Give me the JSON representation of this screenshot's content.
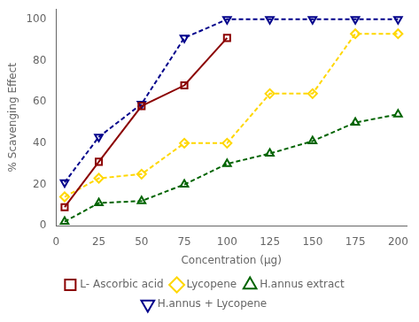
{
  "chart_data": {
    "type": "line",
    "xlabel": "Concentration (μg)",
    "ylabel": "% Scavenging Effect",
    "xlim": [
      0,
      205
    ],
    "ylim": [
      0,
      105
    ],
    "xticks": [
      0,
      25,
      50,
      75,
      100,
      125,
      150,
      175,
      200
    ],
    "yticks": [
      0,
      20,
      40,
      60,
      80,
      100
    ],
    "grid": false,
    "legend": "bottom",
    "series": [
      {
        "name": "L- Ascorbic acid",
        "x": [
          5,
          25,
          50,
          75,
          100
        ],
        "values": [
          9,
          31,
          58,
          68,
          91
        ],
        "color": "#8B0000",
        "marker": "square",
        "line_style": "solid"
      },
      {
        "name": "Lycopene",
        "x": [
          5,
          25,
          50,
          75,
          100,
          125,
          150,
          175,
          200
        ],
        "values": [
          14,
          23,
          25,
          40,
          40,
          64,
          64,
          93,
          93
        ],
        "color": "#FFD700",
        "marker": "diamond",
        "line_style": "dashed"
      },
      {
        "name": "H.annus extract",
        "x": [
          5,
          25,
          50,
          75,
          100,
          125,
          150,
          175,
          200
        ],
        "values": [
          2,
          11,
          12,
          20,
          30,
          35,
          41,
          50,
          54
        ],
        "color": "#006400",
        "marker": "triangle",
        "line_style": "dashed"
      },
      {
        "name": "H.annus + Lycopene",
        "x": [
          5,
          25,
          50,
          75,
          100,
          125,
          150,
          175,
          200
        ],
        "values": [
          21,
          43,
          59,
          91,
          100,
          100,
          100,
          100,
          100
        ],
        "color": "#00008B",
        "marker": "triangle_down",
        "line_style": "dashed"
      }
    ]
  }
}
